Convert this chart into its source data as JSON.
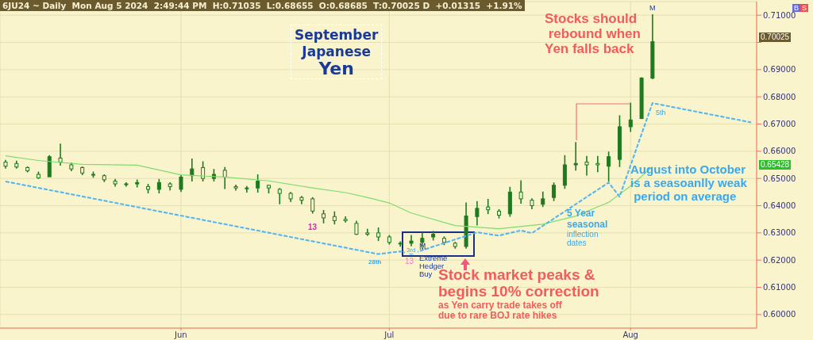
{
  "chart_data": {
    "type": "candlestick",
    "title": "September\nJapanese\nYen",
    "subtitle": "6JU24 ~ Daily  Mon Aug 5 2024  2:49:44 PM  H:0.71035  L:0.68655  O:0.68685  T:0.70025 D  +0.01315  +1.91%",
    "categories": [
      null,
      null,
      null,
      null,
      null,
      null,
      null,
      null,
      null,
      null,
      null,
      null,
      null,
      null,
      null,
      null,
      "Jun",
      null,
      null,
      null,
      null,
      null,
      null,
      null,
      null,
      null,
      null,
      null,
      null,
      null,
      null,
      null,
      null,
      null,
      null,
      "Jul",
      null,
      null,
      null,
      null,
      null,
      null,
      null,
      null,
      null,
      null,
      null,
      null,
      null,
      null,
      null,
      null,
      null,
      null,
      null,
      null,
      null,
      "Aug",
      null,
      null,
      null,
      null,
      null,
      null,
      null,
      null,
      null,
      null,
      null
    ],
    "ohlc": [
      [
        0.656,
        0.6568,
        0.6536,
        0.6545
      ],
      [
        0.6555,
        0.6565,
        0.6536,
        0.6542
      ],
      [
        0.654,
        0.6544,
        0.6522,
        0.6528
      ],
      [
        0.6515,
        0.6525,
        0.6498,
        0.6502
      ],
      [
        0.6506,
        0.6586,
        0.6506,
        0.658
      ],
      [
        0.6575,
        0.6628,
        0.6547,
        0.656
      ],
      [
        0.655,
        0.6559,
        0.6527,
        0.6535
      ],
      [
        0.654,
        0.6544,
        0.6512,
        0.652
      ],
      [
        0.6515,
        0.6525,
        0.6503,
        0.6512
      ],
      [
        0.651,
        0.6515,
        0.6487,
        0.6495
      ],
      [
        0.649,
        0.6498,
        0.647,
        0.648
      ],
      [
        0.6478,
        0.6486,
        0.647,
        0.648
      ],
      [
        0.648,
        0.6496,
        0.6467,
        0.6485
      ],
      [
        0.647,
        0.648,
        0.6445,
        0.646
      ],
      [
        0.646,
        0.6498,
        0.6445,
        0.6485
      ],
      [
        0.648,
        0.6486,
        0.6456,
        0.647
      ],
      [
        0.646,
        0.6513,
        0.645,
        0.6505
      ],
      [
        0.651,
        0.6573,
        0.6489,
        0.6535
      ],
      [
        0.654,
        0.6563,
        0.6489,
        0.65
      ],
      [
        0.65,
        0.6535,
        0.6489,
        0.6515
      ],
      [
        0.653,
        0.6542,
        0.6461,
        0.6505
      ],
      [
        0.647,
        0.6477,
        0.6455,
        0.6465
      ],
      [
        0.6465,
        0.6472,
        0.6448,
        0.6465
      ],
      [
        0.6465,
        0.6515,
        0.6448,
        0.649
      ],
      [
        0.6475,
        0.6477,
        0.6445,
        0.6465
      ],
      [
        0.646,
        0.6465,
        0.6405,
        0.6445
      ],
      [
        0.6445,
        0.645,
        0.6414,
        0.6425
      ],
      [
        0.643,
        0.6436,
        0.6405,
        0.642
      ],
      [
        0.6425,
        0.6431,
        0.6371,
        0.638
      ],
      [
        0.637,
        0.6384,
        0.6335,
        0.6355
      ],
      [
        0.636,
        0.6379,
        0.6331,
        0.6345
      ],
      [
        0.635,
        0.6361,
        0.6338,
        0.6345
      ],
      [
        0.6335,
        0.6345,
        0.6292,
        0.6295
      ],
      [
        0.63,
        0.6315,
        0.6289,
        0.6295
      ],
      [
        0.63,
        0.632,
        0.627,
        0.6285
      ],
      [
        0.6285,
        0.6292,
        0.6257,
        0.6265
      ],
      [
        0.626,
        0.6269,
        0.6249,
        0.6262
      ],
      [
        0.6262,
        0.6292,
        0.6251,
        0.627
      ],
      [
        0.6265,
        0.6302,
        0.6249,
        0.628
      ],
      [
        0.6285,
        0.6307,
        0.6272,
        0.6295
      ],
      [
        0.628,
        0.6287,
        0.6255,
        0.6265
      ],
      [
        0.6262,
        0.6267,
        0.6242,
        0.625
      ],
      [
        0.625,
        0.6412,
        0.6242,
        0.6362
      ],
      [
        0.636,
        0.6417,
        0.6327,
        0.639
      ],
      [
        0.6395,
        0.6425,
        0.6369,
        0.6385
      ],
      [
        0.638,
        0.6387,
        0.6353,
        0.6365
      ],
      [
        0.637,
        0.6469,
        0.6359,
        0.645
      ],
      [
        0.645,
        0.6493,
        0.6407,
        0.6425
      ],
      [
        0.642,
        0.6427,
        0.6387,
        0.64
      ],
      [
        0.6405,
        0.6452,
        0.6395,
        0.6425
      ],
      [
        0.643,
        0.6485,
        0.6417,
        0.6475
      ],
      [
        0.6475,
        0.6586,
        0.6462,
        0.655
      ],
      [
        0.655,
        0.6634,
        0.6529,
        0.6555
      ],
      [
        0.656,
        0.6583,
        0.6511,
        0.655
      ],
      [
        0.6555,
        0.6583,
        0.6523,
        0.655
      ],
      [
        0.6545,
        0.6599,
        0.6488,
        0.658
      ],
      [
        0.657,
        0.6732,
        0.6542,
        0.669
      ],
      [
        0.669,
        0.6779,
        0.6671,
        0.6715
      ],
      [
        0.672,
        0.6872,
        0.6719,
        0.6869
      ],
      [
        0.68685,
        0.71035,
        0.68655,
        0.70025
      ],
      null,
      null,
      null,
      null,
      null,
      null,
      null,
      null,
      null
    ],
    "color": "#1f7a1f",
    "series": [
      {
        "type": "line",
        "color": "#7fdc6f",
        "values": [
          0.6583,
          null,
          null,
          0.6566,
          null,
          null,
          null,
          0.6552,
          null,
          null,
          null,
          null,
          0.6549,
          null,
          null,
          null,
          0.6513,
          null,
          null,
          null,
          0.6505,
          null,
          null,
          null,
          0.6491,
          null,
          null,
          null,
          0.6465,
          null,
          null,
          0.6448,
          null,
          0.643,
          null,
          0.641,
          null,
          0.6373,
          null,
          null,
          null,
          0.6327,
          null,
          null,
          null,
          0.6315,
          null,
          null,
          null,
          0.6332,
          null,
          null,
          0.6362,
          null,
          null,
          0.6412,
          null,
          0.6472,
          null,
          0.6543,
          null,
          null,
          null,
          null,
          null,
          null,
          null,
          null,
          null
        ]
      },
      {
        "type": "line",
        "color": "#4fb4f4",
        "line_style": "dashed",
        "values": [
          0.6489,
          null,
          null,
          null,
          null,
          null,
          null,
          null,
          null,
          null,
          null,
          null,
          null,
          null,
          null,
          null,
          null,
          null,
          null,
          null,
          null,
          null,
          null,
          null,
          null,
          null,
          null,
          null,
          null,
          null,
          null,
          null,
          null,
          null,
          0.6222,
          null,
          0.6232,
          0.6223,
          null,
          null,
          null,
          null,
          null,
          0.6302,
          null,
          0.629,
          null,
          0.6309,
          0.6299,
          null,
          null,
          null,
          null,
          null,
          null,
          0.6485,
          0.6433,
          null,
          null,
          0.6777,
          null,
          null,
          null,
          null,
          null,
          null,
          null,
          null,
          0.6706
        ]
      }
    ],
    "ylim": [
      0.595,
      0.715
    ],
    "yticks": [
      {
        "value": 0.6,
        "label": "0.60000"
      },
      {
        "value": 0.61,
        "label": "0.61000"
      },
      {
        "value": 0.62,
        "label": "0.62000"
      },
      {
        "value": 0.63,
        "label": "0.63000"
      },
      {
        "value": 0.64,
        "label": "0.64000"
      },
      {
        "value": 0.65,
        "label": "0.65000"
      },
      {
        "value": 0.66,
        "label": "0.66000"
      },
      {
        "value": 0.67,
        "label": "0.67000"
      },
      {
        "value": 0.68,
        "label": "0.68000"
      },
      {
        "value": 0.69,
        "label": "0.69000"
      },
      {
        "value": 0.7,
        "label": null
      },
      {
        "value": 0.71,
        "label": "0.71000"
      }
    ],
    "grid": true,
    "marker": "none",
    "annotations": [
      "Stocks should\n rebound when\nYen falls back",
      "August into October\nis a seasoanlly weak\n period on average",
      "5 Year\nseasonal",
      "inflection\ndates",
      "Stock market peaks &\nbegins 10% correction",
      "as Yen carry trade takes off\ndue to rare BOJ rate hikes",
      "Extreme\nHedger\nBuy",
      "M",
      "M",
      "13",
      "13",
      "28th",
      "3rd",
      "5th",
      "0.70025",
      "0.65428",
      "B",
      "S"
    ]
  }
}
